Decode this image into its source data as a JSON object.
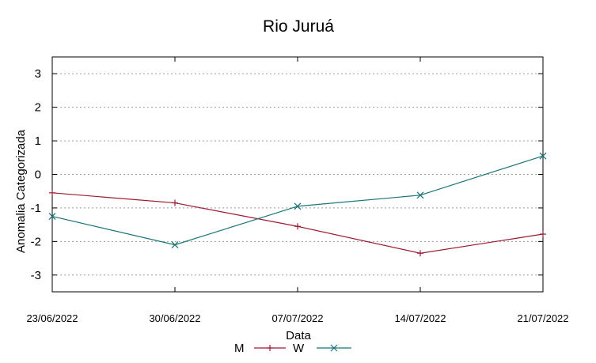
{
  "chart_data": {
    "type": "line",
    "title": "Rio Juruá",
    "xlabel": "Data",
    "ylabel": "Anomalia Categorizada",
    "x_ticks": [
      "23/06/2022",
      "30/06/2022",
      "07/07/2022",
      "14/07/2022",
      "21/07/2022"
    ],
    "y_ticks": [
      "3",
      "2",
      "1",
      "0",
      "-1",
      "-2",
      "-3"
    ],
    "ylim": [
      -3.5,
      3.5
    ],
    "grid": true,
    "legend_position": "bottom-center",
    "series": [
      {
        "name": "M",
        "color": "#9b1b30",
        "marker": "plus",
        "values": [
          -0.55,
          -0.85,
          -1.55,
          -2.35,
          -1.78
        ]
      },
      {
        "name": "W",
        "color": "#1a7377",
        "marker": "cross",
        "values": [
          -1.25,
          -2.1,
          -0.95,
          -0.62,
          0.55
        ]
      }
    ]
  }
}
